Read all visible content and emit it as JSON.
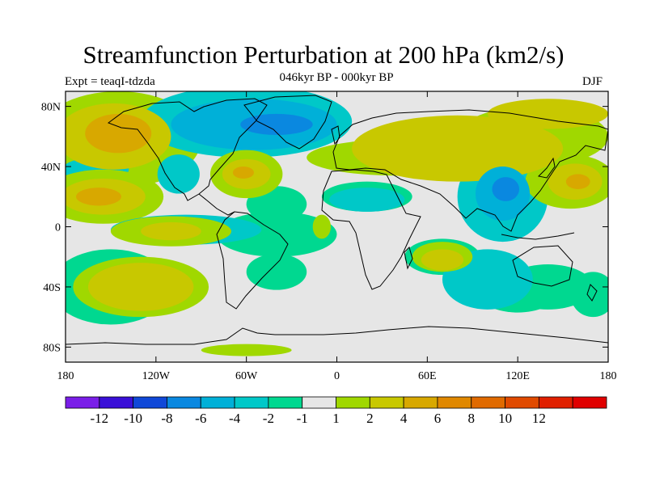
{
  "title": "Streamfunction Perturbation at 200 hPa (km2/s)",
  "left_label": "Expt = teaqI-tdzda",
  "center_label": "046kyr BP - 000kyr BP",
  "right_label": "DJF",
  "map": {
    "projection": "cylindrical equidistant",
    "lon_range": [
      -180,
      180
    ],
    "lat_range": [
      -90,
      90
    ],
    "lat_ticks": [
      {
        "lat": 80,
        "label": "80N"
      },
      {
        "lat": 40,
        "label": "40N"
      },
      {
        "lat": 0,
        "label": "0"
      },
      {
        "lat": -40,
        "label": "40S"
      },
      {
        "lat": -80,
        "label": "80S"
      }
    ],
    "lon_ticks": [
      {
        "lon": -180,
        "label": "180"
      },
      {
        "lon": -120,
        "label": "120W"
      },
      {
        "lon": -60,
        "label": "60W"
      },
      {
        "lon": 0,
        "label": "0"
      },
      {
        "lon": 60,
        "label": "60E"
      },
      {
        "lon": 120,
        "label": "120E"
      },
      {
        "lon": 180,
        "label": "180"
      }
    ]
  },
  "colorbar": {
    "colors": [
      "#7a1ee8",
      "#3a10d8",
      "#1048d8",
      "#0a88e0",
      "#00b0d8",
      "#00c8c8",
      "#00d890",
      "#e6e6e6",
      "#a0d800",
      "#c8c800",
      "#d8a800",
      "#e08800",
      "#e06a00",
      "#e04a00",
      "#e02000",
      "#e00000"
    ],
    "labels": [
      "-12",
      "-10",
      "-8",
      "-6",
      "-4",
      "-2",
      "-1",
      "1",
      "2",
      "4",
      "6",
      "8",
      "10",
      "12"
    ]
  },
  "field": {
    "background_color": "#e6e6e6",
    "blobs": [
      {
        "lon": -145,
        "lat": 58,
        "rlon": 55,
        "rlat": 32,
        "level": 2
      },
      {
        "lon": -148,
        "lat": 60,
        "rlon": 38,
        "rlat": 22,
        "level": 4
      },
      {
        "lon": -145,
        "lat": 62,
        "rlon": 22,
        "rlat": 13,
        "level": 6
      },
      {
        "lon": -160,
        "lat": 38,
        "rlon": 22,
        "rlat": 8,
        "level": -2
      },
      {
        "lon": -155,
        "lat": 20,
        "rlon": 40,
        "rlat": 18,
        "level": 2
      },
      {
        "lon": -155,
        "lat": 20,
        "rlon": 28,
        "rlat": 12,
        "level": 4
      },
      {
        "lon": -158,
        "lat": 20,
        "rlon": 15,
        "rlat": 6,
        "level": 6
      },
      {
        "lon": -60,
        "lat": 70,
        "rlon": 70,
        "rlat": 24,
        "level": -2
      },
      {
        "lon": -55,
        "lat": 68,
        "rlon": 55,
        "rlat": 17,
        "level": -4
      },
      {
        "lon": -40,
        "lat": 68,
        "rlon": 24,
        "rlat": 7,
        "level": -6
      },
      {
        "lon": -105,
        "lat": 35,
        "rlon": 14,
        "rlat": 13,
        "level": -2
      },
      {
        "lon": -60,
        "lat": 35,
        "rlon": 24,
        "rlat": 16,
        "level": 2
      },
      {
        "lon": -60,
        "lat": 35,
        "rlon": 16,
        "rlat": 10,
        "level": 4
      },
      {
        "lon": -62,
        "lat": 36,
        "rlon": 7,
        "rlat": 4,
        "level": 6
      },
      {
        "lon": -100,
        "lat": -2,
        "rlon": 50,
        "rlat": 10,
        "level": -2
      },
      {
        "lon": -110,
        "lat": -3,
        "rlon": 40,
        "rlat": 10,
        "level": 2
      },
      {
        "lon": -110,
        "lat": -3,
        "rlon": 20,
        "rlat": 6,
        "level": 4
      },
      {
        "lon": -40,
        "lat": 15,
        "rlon": 20,
        "rlat": 12,
        "level": -1
      },
      {
        "lon": -40,
        "lat": -5,
        "rlon": 40,
        "rlat": 15,
        "level": -1
      },
      {
        "lon": -10,
        "lat": 0,
        "rlon": 6,
        "rlat": 8,
        "level": 1
      },
      {
        "lon": -150,
        "lat": -40,
        "rlon": 40,
        "rlat": 25,
        "level": -1
      },
      {
        "lon": -130,
        "lat": -40,
        "rlon": 45,
        "rlat": 20,
        "level": 2
      },
      {
        "lon": -130,
        "lat": -40,
        "rlon": 35,
        "rlat": 16,
        "level": 4
      },
      {
        "lon": -40,
        "lat": -30,
        "rlon": 20,
        "rlat": 12,
        "level": -1
      },
      {
        "lon": -60,
        "lat": -82,
        "rlon": 30,
        "rlat": 4,
        "level": 2
      },
      {
        "lon": 20,
        "lat": 20,
        "rlon": 30,
        "rlat": 10,
        "level": -1
      },
      {
        "lon": 20,
        "lat": 18,
        "rlon": 25,
        "rlat": 8,
        "level": -2
      },
      {
        "lon": 40,
        "lat": 46,
        "rlon": 60,
        "rlat": 12,
        "level": 2
      },
      {
        "lon": 80,
        "lat": 52,
        "rlon": 70,
        "rlat": 22,
        "level": 4
      },
      {
        "lon": 140,
        "lat": 75,
        "rlon": 40,
        "rlat": 10,
        "level": 4
      },
      {
        "lon": 130,
        "lat": 60,
        "rlon": 50,
        "rlat": 20,
        "level": 2
      },
      {
        "lon": 110,
        "lat": 20,
        "rlon": 30,
        "rlat": 30,
        "level": -2
      },
      {
        "lon": 110,
        "lat": 22,
        "rlon": 18,
        "rlat": 18,
        "level": -4
      },
      {
        "lon": 112,
        "lat": 25,
        "rlon": 9,
        "rlat": 8,
        "level": -6
      },
      {
        "lon": 100,
        "lat": -35,
        "rlon": 30,
        "rlat": 20,
        "level": -2
      },
      {
        "lon": 155,
        "lat": 30,
        "rlon": 30,
        "rlat": 18,
        "level": 2
      },
      {
        "lon": 158,
        "lat": 30,
        "rlon": 18,
        "rlat": 12,
        "level": 4
      },
      {
        "lon": 160,
        "lat": 30,
        "rlon": 8,
        "rlat": 5,
        "level": 6
      },
      {
        "lon": 70,
        "lat": -20,
        "rlon": 25,
        "rlat": 12,
        "level": -1
      },
      {
        "lon": 70,
        "lat": -20,
        "rlon": 20,
        "rlat": 10,
        "level": 2
      },
      {
        "lon": 70,
        "lat": -22,
        "rlon": 14,
        "rlat": 7,
        "level": 4
      },
      {
        "lon": 120,
        "lat": -45,
        "rlon": 25,
        "rlat": 12,
        "level": -1
      },
      {
        "lon": 140,
        "lat": -40,
        "rlon": 30,
        "rlat": 15,
        "level": -1
      },
      {
        "lon": 170,
        "lat": -45,
        "rlon": 15,
        "rlat": 15,
        "level": -1
      }
    ]
  }
}
